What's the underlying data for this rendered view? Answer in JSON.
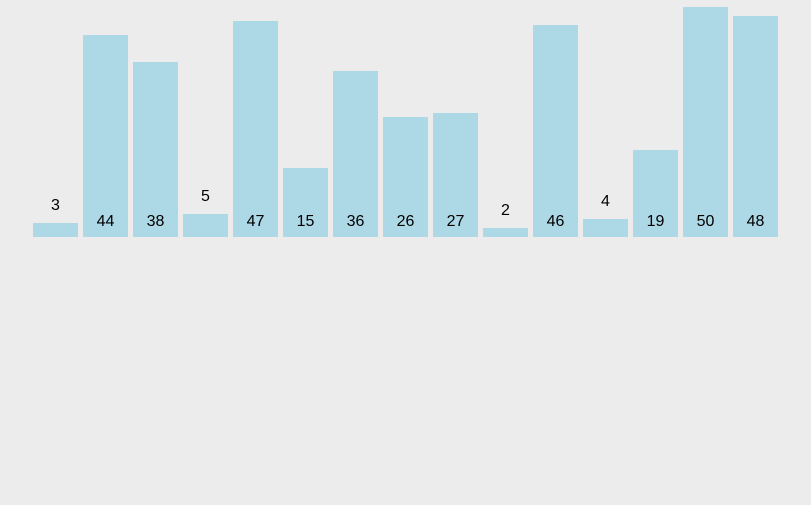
{
  "chart_data": {
    "type": "bar",
    "title": "",
    "xlabel": "",
    "ylabel": "",
    "categories": [],
    "values": [
      3,
      44,
      38,
      5,
      47,
      15,
      36,
      26,
      27,
      2,
      46,
      4,
      19,
      50,
      48
    ],
    "ylim": [
      0,
      50
    ],
    "grid": false,
    "legend": false,
    "axes_visible": false,
    "bar_color": "#ADD8E6",
    "background_color": "#ECECEC",
    "label_color": "#000000",
    "label_placement_rule": "value drawn inside bar near its base when the bar is tall enough, otherwise just above the bar top"
  }
}
